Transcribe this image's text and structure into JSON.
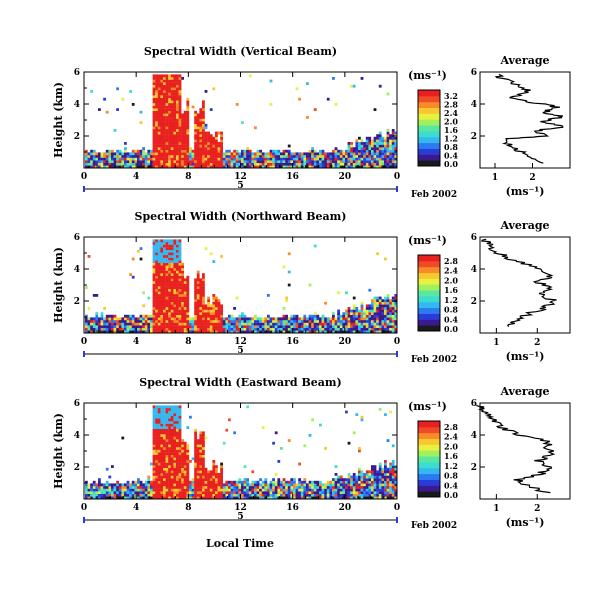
{
  "figure": {
    "date_label": "Feb 2002",
    "day_label": "5",
    "xlabel": "Local Time",
    "avg_title": "Average",
    "unit_label": "(ms⁻¹)",
    "colors": {
      "colorbar": [
        "#1a1a1a",
        "#3a1a8c",
        "#2a3cd8",
        "#2b7af0",
        "#35b8f0",
        "#3cdcd0",
        "#5ae8a0",
        "#a0f060",
        "#e8f040",
        "#f8c830",
        "#f88a28",
        "#f04a28",
        "#e82020"
      ],
      "cloud_low": "#3cc8e8",
      "cloud_high": "#f03c30"
    }
  },
  "chart_data": [
    {
      "type": "heatmap",
      "title": "Spectral Width (Vertical Beam)",
      "ylabel": "Height (km)",
      "xlim": [
        0,
        24
      ],
      "ylim": [
        0,
        6
      ],
      "x_ticks": [
        "0",
        "4",
        "8",
        "12",
        "16",
        "20",
        "0"
      ],
      "y_ticks": [
        "2",
        "4",
        "6"
      ],
      "colorbar_ticks": [
        "0.0",
        "0.4",
        "0.8",
        "1.2",
        "1.6",
        "2.0",
        "2.4",
        "2.8",
        "3.2"
      ],
      "colorbar_range": [
        0,
        3.2
      ],
      "avg_xticks": [
        "1",
        "2"
      ],
      "avg_xlim": [
        0.6,
        3.0
      ],
      "average_profile": [
        [
          0.3,
          2.3
        ],
        [
          0.6,
          2.0
        ],
        [
          1.0,
          1.7
        ],
        [
          1.4,
          1.4
        ],
        [
          1.8,
          1.2
        ],
        [
          2.0,
          2.4
        ],
        [
          2.3,
          2.0
        ],
        [
          2.6,
          2.9
        ],
        [
          2.9,
          2.2
        ],
        [
          3.2,
          2.8
        ],
        [
          3.5,
          2.3
        ],
        [
          3.8,
          2.7
        ],
        [
          4.1,
          2.0
        ],
        [
          4.4,
          1.5
        ],
        [
          4.8,
          1.9
        ],
        [
          5.2,
          1.6
        ],
        [
          5.6,
          1.2
        ],
        [
          5.9,
          1.0
        ]
      ]
    },
    {
      "type": "heatmap",
      "title": "Spectral Width (Northward Beam)",
      "ylabel": "Height (km)",
      "xlim": [
        0,
        24
      ],
      "ylim": [
        0,
        6
      ],
      "x_ticks": [
        "0",
        "4",
        "8",
        "12",
        "16",
        "20",
        "0"
      ],
      "y_ticks": [
        "2",
        "4",
        "6"
      ],
      "colorbar_ticks": [
        "0.0",
        "0.4",
        "0.8",
        "1.2",
        "1.6",
        "2.0",
        "2.4",
        "2.8"
      ],
      "colorbar_range": [
        0,
        2.8
      ],
      "avg_xticks": [
        "1",
        "2"
      ],
      "avg_xlim": [
        0.6,
        2.8
      ],
      "average_profile": [
        [
          0.4,
          1.3
        ],
        [
          0.8,
          1.5
        ],
        [
          1.2,
          1.8
        ],
        [
          1.6,
          2.2
        ],
        [
          2.0,
          2.4
        ],
        [
          2.4,
          2.1
        ],
        [
          2.8,
          2.3
        ],
        [
          3.2,
          2.0
        ],
        [
          3.6,
          2.4
        ],
        [
          4.0,
          2.1
        ],
        [
          4.4,
          1.6
        ],
        [
          4.8,
          1.2
        ],
        [
          5.2,
          0.9
        ],
        [
          5.6,
          0.8
        ],
        [
          5.9,
          0.7
        ]
      ]
    },
    {
      "type": "heatmap",
      "title": "Spectral Width (Eastward Beam)",
      "ylabel": "Height (km)",
      "xlabel": "Local Time",
      "xlim": [
        0,
        24
      ],
      "ylim": [
        0,
        6
      ],
      "x_ticks": [
        "0",
        "4",
        "8",
        "12",
        "16",
        "20",
        "0"
      ],
      "y_ticks": [
        "2",
        "4",
        "6"
      ],
      "colorbar_ticks": [
        "0.0",
        "0.4",
        "0.8",
        "1.2",
        "1.6",
        "2.0",
        "2.4",
        "2.8"
      ],
      "colorbar_range": [
        0,
        2.8
      ],
      "avg_xticks": [
        "1",
        "2"
      ],
      "avg_xlim": [
        0.6,
        2.8
      ],
      "average_profile": [
        [
          0.4,
          2.2
        ],
        [
          0.8,
          1.8
        ],
        [
          1.2,
          1.5
        ],
        [
          1.6,
          2.1
        ],
        [
          2.0,
          2.3
        ],
        [
          2.4,
          2.0
        ],
        [
          2.8,
          2.4
        ],
        [
          3.2,
          2.2
        ],
        [
          3.6,
          2.3
        ],
        [
          4.0,
          1.6
        ],
        [
          4.4,
          1.2
        ],
        [
          4.8,
          1.0
        ],
        [
          5.2,
          0.8
        ],
        [
          5.6,
          0.7
        ],
        [
          5.9,
          0.6
        ]
      ]
    }
  ]
}
